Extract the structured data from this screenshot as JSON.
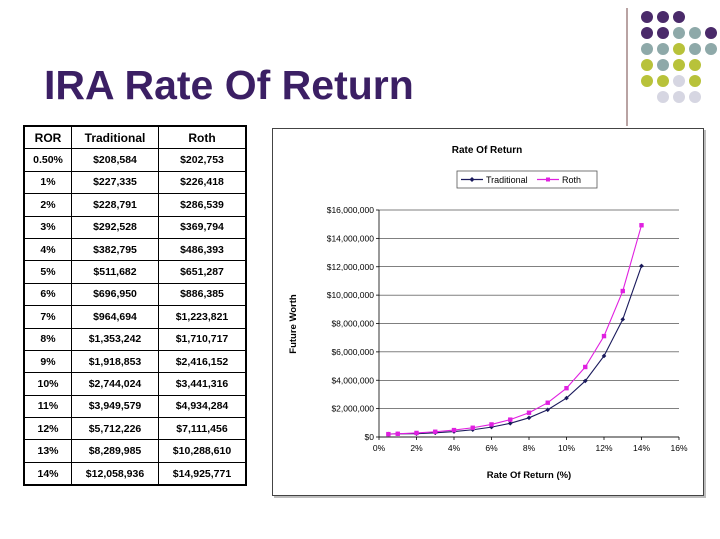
{
  "slide": {
    "title": "IRA Rate Of Return"
  },
  "table": {
    "headers": [
      "ROR",
      "Traditional",
      "Roth"
    ],
    "rows": [
      [
        "0.50%",
        "$208,584",
        "$202,753"
      ],
      [
        "1%",
        "$227,335",
        "$226,418"
      ],
      [
        "2%",
        "$228,791",
        "$286,539"
      ],
      [
        "3%",
        "$292,528",
        "$369,794"
      ],
      [
        "4%",
        "$382,795",
        "$486,393"
      ],
      [
        "5%",
        "$511,682",
        "$651,287"
      ],
      [
        "6%",
        "$696,950",
        "$886,385"
      ],
      [
        "7%",
        "$964,694",
        "$1,223,821"
      ],
      [
        "8%",
        "$1,353,242",
        "$1,710,717"
      ],
      [
        "9%",
        "$1,918,853",
        "$2,416,152"
      ],
      [
        "10%",
        "$2,744,024",
        "$3,441,316"
      ],
      [
        "11%",
        "$3,949,579",
        "$4,934,284"
      ],
      [
        "12%",
        "$5,712,226",
        "$7,111,456"
      ],
      [
        "13%",
        "$8,289,985",
        "$10,288,610"
      ],
      [
        "14%",
        "$12,058,936",
        "$14,925,771"
      ]
    ]
  },
  "chart_data": {
    "type": "line",
    "title": "Rate Of Return",
    "xlabel": "Rate Of Return (%)",
    "ylabel": "Future Worth",
    "x": [
      0.5,
      1,
      2,
      3,
      4,
      5,
      6,
      7,
      8,
      9,
      10,
      11,
      12,
      13,
      14
    ],
    "xlim": [
      0,
      16
    ],
    "ylim": [
      0,
      16000000
    ],
    "x_ticks": [
      0,
      2,
      4,
      6,
      8,
      10,
      12,
      14,
      16
    ],
    "x_tick_labels": [
      "0%",
      "2%",
      "4%",
      "6%",
      "8%",
      "10%",
      "12%",
      "14%",
      "16%"
    ],
    "y_ticks": [
      0,
      2000000,
      4000000,
      6000000,
      8000000,
      10000000,
      12000000,
      14000000,
      16000000
    ],
    "y_tick_labels": [
      "$0",
      "$2,000,000",
      "$4,000,000",
      "$6,000,000",
      "$8,000,000",
      "$10,000,000",
      "$12,000,000",
      "$14,000,000",
      "$16,000,000"
    ],
    "grid": "horizontal",
    "legend": "top",
    "series": [
      {
        "name": "Traditional",
        "color": "#1a1a5c",
        "marker": "diamond",
        "values": [
          208584,
          227335,
          228791,
          292528,
          382795,
          511682,
          696950,
          964694,
          1353242,
          1918853,
          2744024,
          3949579,
          5712226,
          8289985,
          12058936
        ]
      },
      {
        "name": "Roth",
        "color": "#e020e0",
        "marker": "square",
        "values": [
          202753,
          226418,
          286539,
          369794,
          486393,
          651287,
          886385,
          1223821,
          1710717,
          2416152,
          3441316,
          4934284,
          7111456,
          10288610,
          14925771
        ]
      }
    ]
  },
  "decor": {
    "dot_colors": [
      "#4a2a6a",
      "#8ea9a9",
      "#b8c23a",
      "#d6d6e2"
    ]
  }
}
